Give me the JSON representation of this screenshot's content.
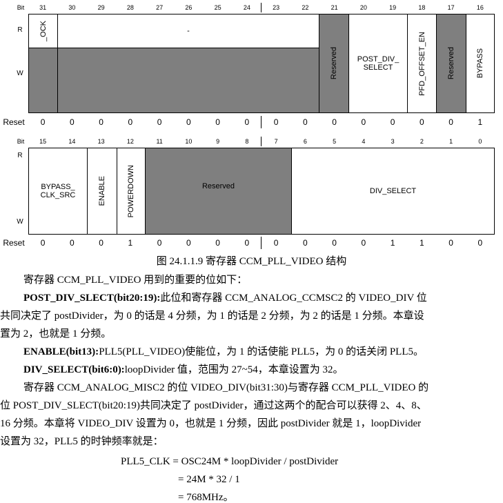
{
  "register": {
    "row1": {
      "bit_header": "Bit",
      "bits": [
        "31",
        "30",
        "29",
        "28",
        "27",
        "26",
        "25",
        "24",
        "23",
        "22",
        "21",
        "20",
        "19",
        "18",
        "17",
        "16"
      ],
      "r_label": "R",
      "w_label": "W",
      "fields": {
        "lock": "_OCK",
        "dash": "-",
        "reserved21": "Reserved",
        "post_div_select_line1": "POST_DIV_",
        "post_div_select_line2": "SELECT",
        "pfd_offset_en": "PFD_OFFSET_EN",
        "reserved17": "Reserved",
        "bypass": "BYPASS"
      },
      "reset_label": "Reset",
      "reset": [
        "0",
        "0",
        "0",
        "0",
        "0",
        "0",
        "0",
        "0",
        "0",
        "0",
        "0",
        "0",
        "0",
        "0",
        "0",
        "1"
      ]
    },
    "row2": {
      "bit_header": "Bit",
      "bits": [
        "15",
        "14",
        "13",
        "12",
        "11",
        "10",
        "9",
        "8",
        "7",
        "6",
        "5",
        "4",
        "3",
        "2",
        "1",
        "0"
      ],
      "r_label": "R",
      "w_label": "W",
      "fields": {
        "bypass_clk_src_line1": "BYPASS_",
        "bypass_clk_src_line2": "CLK_SRC",
        "enable": "ENABLE",
        "powerdown": "POWERDOWN",
        "reserved": "Reserved",
        "div_select": "DIV_SELECT"
      },
      "reset_label": "Reset",
      "reset": [
        "0",
        "0",
        "0",
        "1",
        "0",
        "0",
        "0",
        "0",
        "0",
        "0",
        "0",
        "0",
        "1",
        "1",
        "0",
        "0"
      ]
    }
  },
  "caption": "图 24.1.1.9 寄存器 CCM_PLL_VIDEO 结构",
  "paragraphs": {
    "intro": "寄存器 CCM_PLL_VIDEO 用到的重要的位如下：",
    "p1_bold": "POST_DIV_SLECT(bit20:19):",
    "p1_rest": "此位和寄存器 CCM_ANALOG_CCMSC2 的 VIDEO_DIV 位",
    "p1_line2": "共同决定了 postDivider，为 0 的话是 4 分频，为 1 的话是 2 分频，为 2 的话是 1 分频。本章设",
    "p1_line3": "置为 2，也就是 1 分频。",
    "p2_bold": "ENABLE(bit13):",
    "p2_rest": "PLL5(PLL_VIDEO)使能位，为 1 的话使能 PLL5，为 0 的话关闭 PLL5。",
    "p3_bold": "DIV_SELECT(bit6:0):",
    "p3_rest": "loopDivider 值，范围为 27~54，本章设置为 32。",
    "p4_line1": "寄存器 CCM_ANALOG_MISC2 的位 VIDEO_DIV(bit31:30)与寄存器 CCM_PLL_VIDEO 的",
    "p4_line2": "位 POST_DIV_SLECT(bit20:19)共同决定了 postDivider，通过这两个的配合可以获得 2、4、8、",
    "p4_line3": "16 分频。本章将 VIDEO_DIV 设置为 0，也就是 1 分频，因此 postDivider 就是 1，loopDivider",
    "p4_line4": "设置为 32，PLL5 的时钟频率就是："
  },
  "formula": {
    "line1": "PLL5_CLK = OSC24M * loopDivider / postDivider",
    "line2": "= 24M * 32 / 1",
    "line3": "= 768MHz。"
  }
}
